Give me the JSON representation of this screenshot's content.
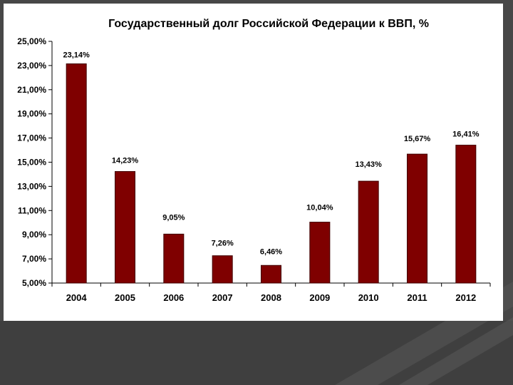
{
  "chart_data": {
    "type": "bar",
    "title": "Государственный долг Российской Федерации к ВВП, %",
    "xlabel": "",
    "ylabel": "",
    "categories": [
      "2004",
      "2005",
      "2006",
      "2007",
      "2008",
      "2009",
      "2010",
      "2011",
      "2012"
    ],
    "values": [
      23.14,
      14.23,
      9.05,
      7.26,
      6.46,
      10.04,
      13.43,
      15.67,
      16.41
    ],
    "data_labels": [
      "23,14%",
      "14,23%",
      "9,05%",
      "7,26%",
      "6,46%",
      "10,04%",
      "13,43%",
      "15,67%",
      "16,41%"
    ],
    "ylim": [
      5,
      25
    ],
    "yticks": [
      5,
      7,
      9,
      11,
      13,
      15,
      17,
      19,
      21,
      23,
      25
    ],
    "ytick_labels": [
      "5,00%",
      "7,00%",
      "9,00%",
      "11,00%",
      "13,00%",
      "15,00%",
      "17,00%",
      "19,00%",
      "21,00%",
      "23,00%",
      "25,00%"
    ],
    "grid": false,
    "legend": "none",
    "bar_color": "#7f0000",
    "bar_edge_color": "#400000"
  }
}
